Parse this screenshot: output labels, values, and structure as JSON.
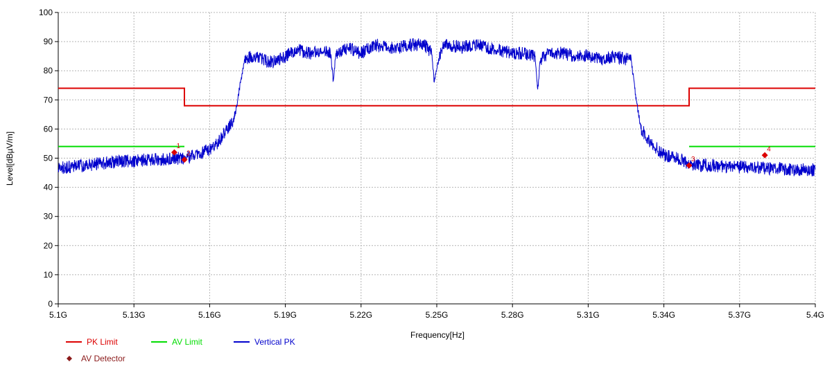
{
  "chart_data": {
    "type": "line",
    "title": "",
    "xlabel": "Frequency[Hz]",
    "ylabel": "Level[dBµV/m]",
    "xlim": [
      5.1,
      5.4
    ],
    "ylim": [
      0,
      100
    ],
    "x_ticks": [
      5.1,
      5.13,
      5.16,
      5.19,
      5.22,
      5.25,
      5.28,
      5.31,
      5.34,
      5.37,
      5.4
    ],
    "x_tick_labels": [
      "5.1G",
      "5.13G",
      "5.16G",
      "5.19G",
      "5.22G",
      "5.25G",
      "5.28G",
      "5.31G",
      "5.34G",
      "5.37G",
      "5.4G"
    ],
    "y_ticks": [
      0,
      10,
      20,
      30,
      40,
      50,
      60,
      70,
      80,
      90,
      100
    ],
    "y_tick_labels": [
      "0",
      "10",
      "20",
      "30",
      "40",
      "50",
      "60",
      "70",
      "80",
      "90",
      "100"
    ],
    "grid": true,
    "legend_position": "bottom-left",
    "series": [
      {
        "name": "PK Limit",
        "color": "#dd0000",
        "style": "step",
        "points": [
          [
            5.1,
            74
          ],
          [
            5.15,
            74
          ],
          [
            5.15,
            68
          ],
          [
            5.35,
            68
          ],
          [
            5.35,
            74
          ],
          [
            5.4,
            74
          ]
        ]
      },
      {
        "name": "AV Limit",
        "color": "#00dd00",
        "style": "segments",
        "segments": [
          [
            [
              5.1,
              54
            ],
            [
              5.15,
              54
            ]
          ],
          [
            [
              5.35,
              54
            ],
            [
              5.4,
              54
            ]
          ]
        ]
      },
      {
        "name": "Vertical PK",
        "color": "#0000cc",
        "style": "line",
        "points": [
          [
            5.1,
            46.5
          ],
          [
            5.105,
            47
          ],
          [
            5.11,
            47.5
          ],
          [
            5.115,
            48
          ],
          [
            5.12,
            48.5
          ],
          [
            5.125,
            49
          ],
          [
            5.13,
            49
          ],
          [
            5.135,
            49.5
          ],
          [
            5.14,
            49.5
          ],
          [
            5.145,
            50
          ],
          [
            5.15,
            50
          ],
          [
            5.155,
            51
          ],
          [
            5.16,
            53
          ],
          [
            5.164,
            56
          ],
          [
            5.168,
            61
          ],
          [
            5.17,
            64
          ],
          [
            5.172,
            75
          ],
          [
            5.174,
            84
          ],
          [
            5.177,
            85
          ],
          [
            5.18,
            84
          ],
          [
            5.185,
            83
          ],
          [
            5.19,
            85
          ],
          [
            5.195,
            87
          ],
          [
            5.2,
            86
          ],
          [
            5.205,
            87
          ],
          [
            5.208,
            86
          ],
          [
            5.209,
            76
          ],
          [
            5.21,
            86
          ],
          [
            5.215,
            88
          ],
          [
            5.22,
            86
          ],
          [
            5.225,
            89
          ],
          [
            5.23,
            88
          ],
          [
            5.235,
            88
          ],
          [
            5.24,
            89
          ],
          [
            5.245,
            89
          ],
          [
            5.248,
            86
          ],
          [
            5.249,
            76
          ],
          [
            5.251,
            85
          ],
          [
            5.253,
            89
          ],
          [
            5.26,
            88
          ],
          [
            5.265,
            89
          ],
          [
            5.27,
            88
          ],
          [
            5.275,
            87
          ],
          [
            5.28,
            86
          ],
          [
            5.285,
            86
          ],
          [
            5.289,
            85
          ],
          [
            5.29,
            73
          ],
          [
            5.291,
            84
          ],
          [
            5.295,
            86
          ],
          [
            5.3,
            86
          ],
          [
            5.305,
            85
          ],
          [
            5.31,
            85
          ],
          [
            5.315,
            84
          ],
          [
            5.32,
            85
          ],
          [
            5.325,
            84
          ],
          [
            5.327,
            84
          ],
          [
            5.329,
            70
          ],
          [
            5.331,
            60
          ],
          [
            5.335,
            55
          ],
          [
            5.34,
            51
          ],
          [
            5.345,
            50
          ],
          [
            5.35,
            48
          ],
          [
            5.355,
            47.5
          ],
          [
            5.36,
            47.5
          ],
          [
            5.365,
            47
          ],
          [
            5.37,
            47
          ],
          [
            5.375,
            47
          ],
          [
            5.38,
            46.5
          ],
          [
            5.385,
            46.5
          ],
          [
            5.39,
            46
          ],
          [
            5.395,
            46
          ],
          [
            5.4,
            46
          ]
        ]
      }
    ],
    "markers": {
      "name": "AV Detector",
      "color": "#dd0000",
      "legend_color": "#8b1a1a",
      "points": [
        {
          "label": "1",
          "x": 5.146,
          "y": 52
        },
        {
          "label": "2",
          "x": 5.15,
          "y": 49.5
        },
        {
          "label": "3",
          "x": 5.35,
          "y": 47.5
        },
        {
          "label": "4",
          "x": 5.38,
          "y": 51
        }
      ]
    }
  }
}
